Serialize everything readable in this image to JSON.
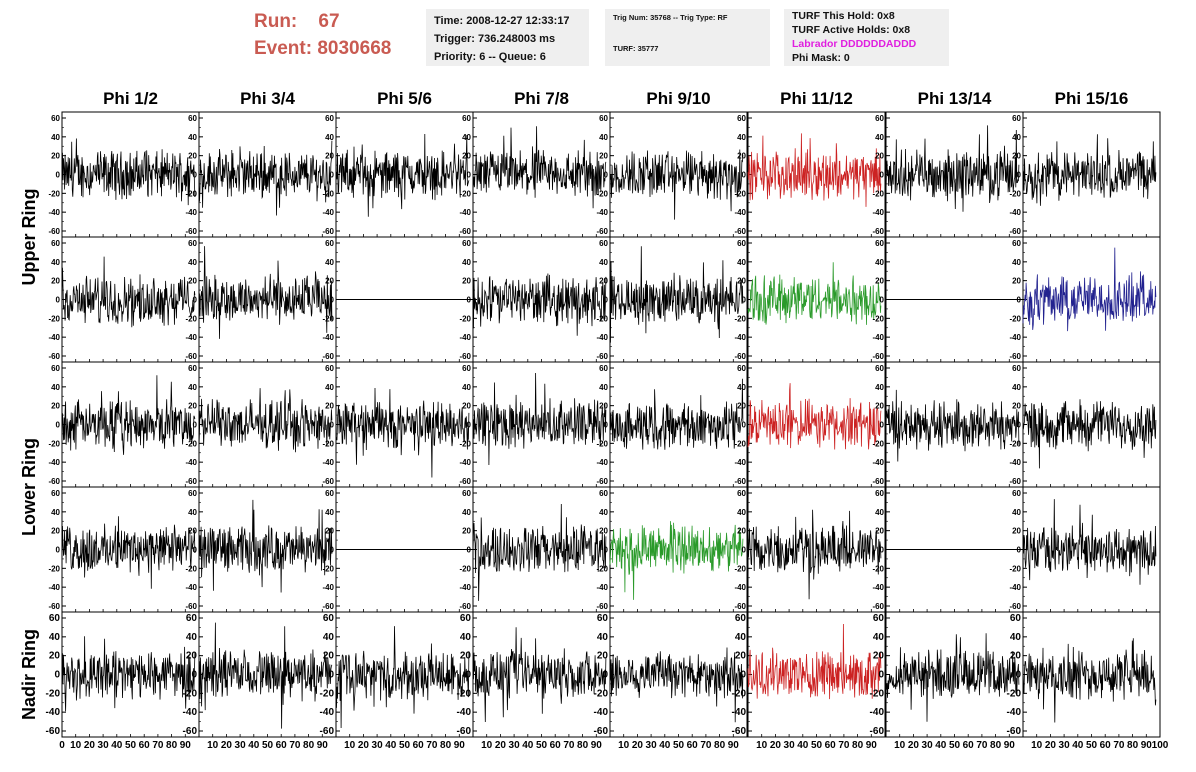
{
  "header": {
    "run_label": "Run:",
    "run_value": "67",
    "event_label": "Event:",
    "event_value": "8030668",
    "time": "Time: 2008-12-27 12:33:17",
    "trigger": "Trigger: 736.248003 ms",
    "priority": "Priority: 6 -- Queue: 6",
    "trig_num": "Trig Num: 35768 -- Trig Type: RF",
    "turf": "TURF: 35777",
    "turf_this_hold": "TURF This Hold: 0x8",
    "turf_active_holds": "TURF Active Holds: 0x8",
    "labrador": "Labrador DDDDDDADDD",
    "phi_mask": "Phi Mask: 0"
  },
  "colors": {
    "header_red": "#c95b52",
    "labrador_magenta": "#e020e0",
    "trace_black": "#000000",
    "trace_red": "#cc2222",
    "trace_green": "#2a9a2a",
    "trace_blue": "#22228f",
    "box_bg": "#efefef"
  },
  "chart_data": {
    "type": "line",
    "columns": [
      "Phi 1/2",
      "Phi 3/4",
      "Phi 5/6",
      "Phi 7/8",
      "Phi 9/10",
      "Phi 11/12",
      "Phi 13/14",
      "Phi 15/16"
    ],
    "ring_labels": [
      {
        "label": "Upper Ring",
        "rows": [
          0,
          1
        ]
      },
      {
        "label": "Lower Ring",
        "rows": [
          2,
          3
        ]
      },
      {
        "label": "Nadir Ring",
        "rows": [
          4
        ]
      }
    ],
    "ylim": [
      -60,
      60
    ],
    "yticks": [
      "60",
      "40",
      "20",
      "0",
      "-20",
      "-40",
      "-60"
    ],
    "xlim": [
      0,
      100
    ],
    "xticks": [
      "0",
      "10",
      "20",
      "30",
      "40",
      "50",
      "60",
      "70",
      "80",
      "90",
      "100"
    ],
    "panels": [
      [
        "black",
        "black",
        "black",
        "black",
        "black",
        "red",
        "black",
        "black"
      ],
      [
        "black",
        "black",
        "flat",
        "black",
        "black",
        "green",
        "flat",
        "blue"
      ],
      [
        "black",
        "black",
        "black",
        "black",
        "black",
        "red",
        "black",
        "black"
      ],
      [
        "black",
        "black",
        "flat",
        "black",
        "green",
        "black",
        "flat",
        "black"
      ],
      [
        "black",
        "black",
        "black",
        "black",
        "black",
        "red",
        "black",
        "black"
      ]
    ],
    "trace_amplitude_approx": 20,
    "samples_per_trace": 260
  }
}
